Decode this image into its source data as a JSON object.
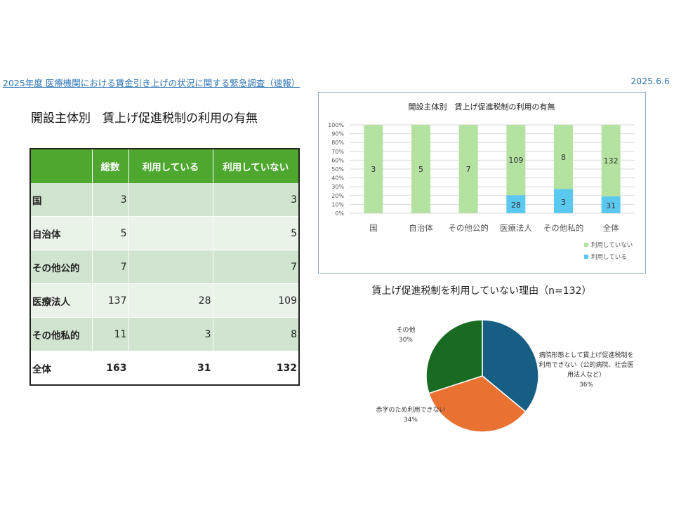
{
  "header": {
    "title": "2025年度 医療機関における賃金引き上げの状況に関する緊急調査（速報）",
    "date": "2025.6.6"
  },
  "table_section": {
    "title": "開設主体別　賃上げ促進税制の利用の有無",
    "columns": [
      "",
      "総数",
      "利用している",
      "利用していない"
    ],
    "rows": [
      {
        "label": "国",
        "total": "3",
        "using": "",
        "not_using": "3"
      },
      {
        "label": "自治体",
        "total": "5",
        "using": "",
        "not_using": "5"
      },
      {
        "label": "その他公的",
        "total": "7",
        "using": "",
        "not_using": "7"
      },
      {
        "label": "医療法人",
        "total": "137",
        "using": "28",
        "not_using": "109"
      },
      {
        "label": "その他私的",
        "total": "11",
        "using": "3",
        "not_using": "8"
      },
      {
        "label": "全体",
        "total": "163",
        "using": "31",
        "not_using": "132"
      }
    ]
  },
  "chart_data": [
    {
      "type": "bar",
      "stacked": "percent",
      "title": "開設主体別　賃上げ促進税制の利用の有無",
      "categories": [
        "国",
        "自治体",
        "その他公的",
        "医療法人",
        "その他私的",
        "全体"
      ],
      "series": [
        {
          "name": "利用している",
          "values": [
            0,
            0,
            0,
            28,
            3,
            31
          ],
          "color": "#5bc8ef"
        },
        {
          "name": "利用していない",
          "values": [
            3,
            5,
            7,
            109,
            8,
            132
          ],
          "color": "#b3e2a1"
        }
      ],
      "data_labels": {
        "using": [
          "",
          "",
          "",
          "28",
          "3",
          "31"
        ],
        "not_using": [
          "3",
          "5",
          "7",
          "109",
          "8",
          "132"
        ]
      },
      "yticks": [
        "0%",
        "10%",
        "20%",
        "30%",
        "40%",
        "50%",
        "60%",
        "70%",
        "80%",
        "90%",
        "100%"
      ],
      "ylim": [
        0,
        100
      ],
      "grid": true,
      "legend_placement": "bottom-right",
      "legend": [
        "利用していない",
        "利用している"
      ]
    },
    {
      "type": "pie",
      "title": "賃上げ促進税制を利用していない理由（n=132）",
      "slices": [
        {
          "label_lines": [
            "病院形態として賃上げ促進税制を",
            "利用できない（公的病院、社会医",
            "用法人など）"
          ],
          "percent_label": "36%",
          "value": 36,
          "color": "#175e84"
        },
        {
          "label_lines": [
            "赤字のため利用できない"
          ],
          "percent_label": "34%",
          "value": 34,
          "color": "#e97132"
        },
        {
          "label_lines": [
            "その他"
          ],
          "percent_label": "30%",
          "value": 30,
          "color": "#196b24"
        }
      ]
    }
  ]
}
